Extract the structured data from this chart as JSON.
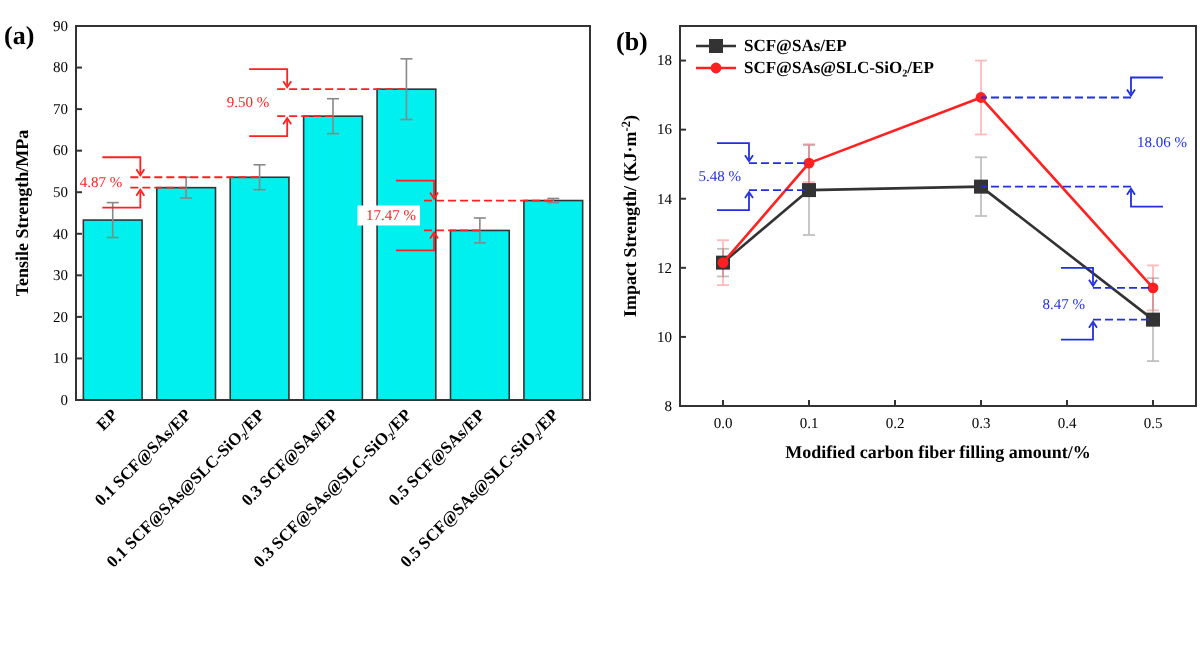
{
  "chart_data": [
    {
      "type": "bar",
      "title": "(a)",
      "ylabel": "Tensile Strength/MPa",
      "categories": [
        "EP",
        "0.1 SCF@SAs/EP",
        "0.1 SCF@SAs@SLC-SiO₂/EP",
        "0.3 SCF@SAs/EP",
        "0.3 SCF@SAs@SLC-SiO₂/EP",
        "0.5 SCF@SAs/EP",
        "0.5 SCF@SAs@SLC-SiO₂/EP"
      ],
      "values": [
        43.3,
        51.1,
        53.6,
        68.3,
        74.8,
        40.8,
        48.0
      ],
      "errors": [
        4.2,
        2.5,
        3.0,
        4.2,
        7.3,
        3.0,
        0.5
      ],
      "color": "#00f0f0",
      "ylim": [
        0,
        90
      ],
      "yticks": [
        0,
        10,
        20,
        30,
        40,
        50,
        60,
        70,
        80,
        90
      ],
      "grid": false,
      "annotations": [
        {
          "text": "4.87 %",
          "x": "0.1 SCF@SAs@SLC-SiO₂/EP",
          "y": 53.6
        },
        {
          "text": "9.50 %",
          "x": "0.3 SCF@SAs@SLC-SiO₂/EP",
          "y": 74.8
        },
        {
          "text": "17.47 %",
          "x": "0.5 SCF@SAs@SLC-SiO₂/EP",
          "y": 48.0
        }
      ]
    },
    {
      "type": "line",
      "title": "(b)",
      "xlabel": "Modified carbon fiber filling amount/%",
      "ylabel": "Impact Strength/ (KJ·m$^{-2}$)",
      "x": [
        0,
        0.1,
        0.3,
        0.5
      ],
      "series": [
        {
          "name": "SCF@SAs/EP",
          "color": "#333333",
          "marker": "square",
          "values": [
            12.15,
            14.25,
            14.35,
            10.5
          ],
          "errors": [
            0.4,
            1.3,
            0.85,
            1.2
          ]
        },
        {
          "name": "SCF@SAs@SLC-SiO₂/EP",
          "color": "#ff2020",
          "marker": "circle",
          "values": [
            12.15,
            15.03,
            16.93,
            11.42
          ],
          "errors": [
            0.65,
            0.55,
            1.07,
            0.65
          ]
        }
      ],
      "xlim": [
        -0.05,
        0.55
      ],
      "xticks": [
        {
          "value": 0,
          "label": "0.0"
        },
        0.1,
        0.2,
        0.3,
        0.4,
        0.5
      ],
      "ylim": [
        8,
        19
      ],
      "yticks": [
        8,
        10,
        12,
        14,
        16,
        18
      ],
      "legend": "top left",
      "grid": false,
      "line_style": "solid",
      "annotations": [
        {
          "text": "5.48 %",
          "x": 0.1,
          "y": 15.03
        },
        "18.06 %",
        {
          "text": "8.47 %",
          "x": 0.5,
          "y": 11.42
        }
      ]
    }
  ]
}
